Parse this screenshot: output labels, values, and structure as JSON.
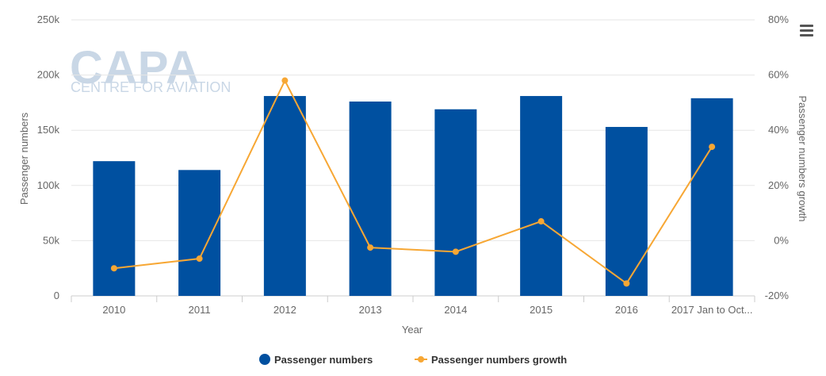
{
  "menu": {
    "icon": "hamburger-menu-icon"
  },
  "watermark": {
    "logo_text": "CAPA",
    "sub_text": "CENTRE FOR AVIATION"
  },
  "colors": {
    "bars": "#0050a0",
    "line": "#f7a734",
    "grid": "#e6e6e6"
  },
  "chart_data": {
    "type": "bar",
    "categories": [
      "2010",
      "2011",
      "2012",
      "2013",
      "2014",
      "2015",
      "2016",
      "2017 Jan to Oct..."
    ],
    "xlabel": "Year",
    "ylabel": "Passenger numbers",
    "ylabel_right": "Passenger numbers growth",
    "ylim": [
      0,
      250000
    ],
    "ylim_right": [
      -20,
      80
    ],
    "yticks": [
      "0",
      "50k",
      "100k",
      "150k",
      "200k",
      "250k"
    ],
    "yticks_right": [
      "-20%",
      "0%",
      "20%",
      "40%",
      "60%",
      "80%"
    ],
    "grid": true,
    "legend_position": "bottom",
    "series": [
      {
        "name": "Passenger numbers",
        "type": "bar",
        "axis": "left",
        "values": [
          122000,
          114000,
          181000,
          176000,
          169000,
          181000,
          153000,
          179000
        ]
      },
      {
        "name": "Passenger numbers growth",
        "type": "line",
        "axis": "right",
        "values": [
          -10,
          -6.5,
          58,
          -2.5,
          -4,
          7,
          -15.5,
          34
        ]
      }
    ]
  }
}
